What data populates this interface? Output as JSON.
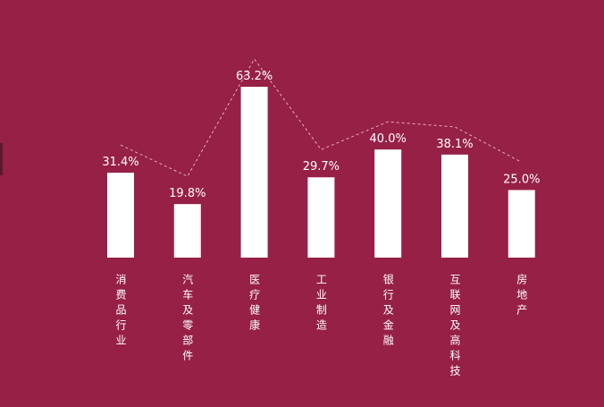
{
  "chart_data": {
    "type": "bar",
    "categories": [
      "消费品行业",
      "汽车及零部件",
      "医疗健康",
      "工业制造",
      "银行及金融",
      "互联网及高科技",
      "房地产"
    ],
    "values": [
      31.4,
      19.8,
      63.2,
      29.7,
      40.0,
      38.1,
      25.0
    ],
    "value_labels": [
      "31.4%",
      "19.8%",
      "63.2%",
      "29.7%",
      "40.0%",
      "38.1%",
      "25.0%"
    ],
    "color": "#ffffff"
  }
}
